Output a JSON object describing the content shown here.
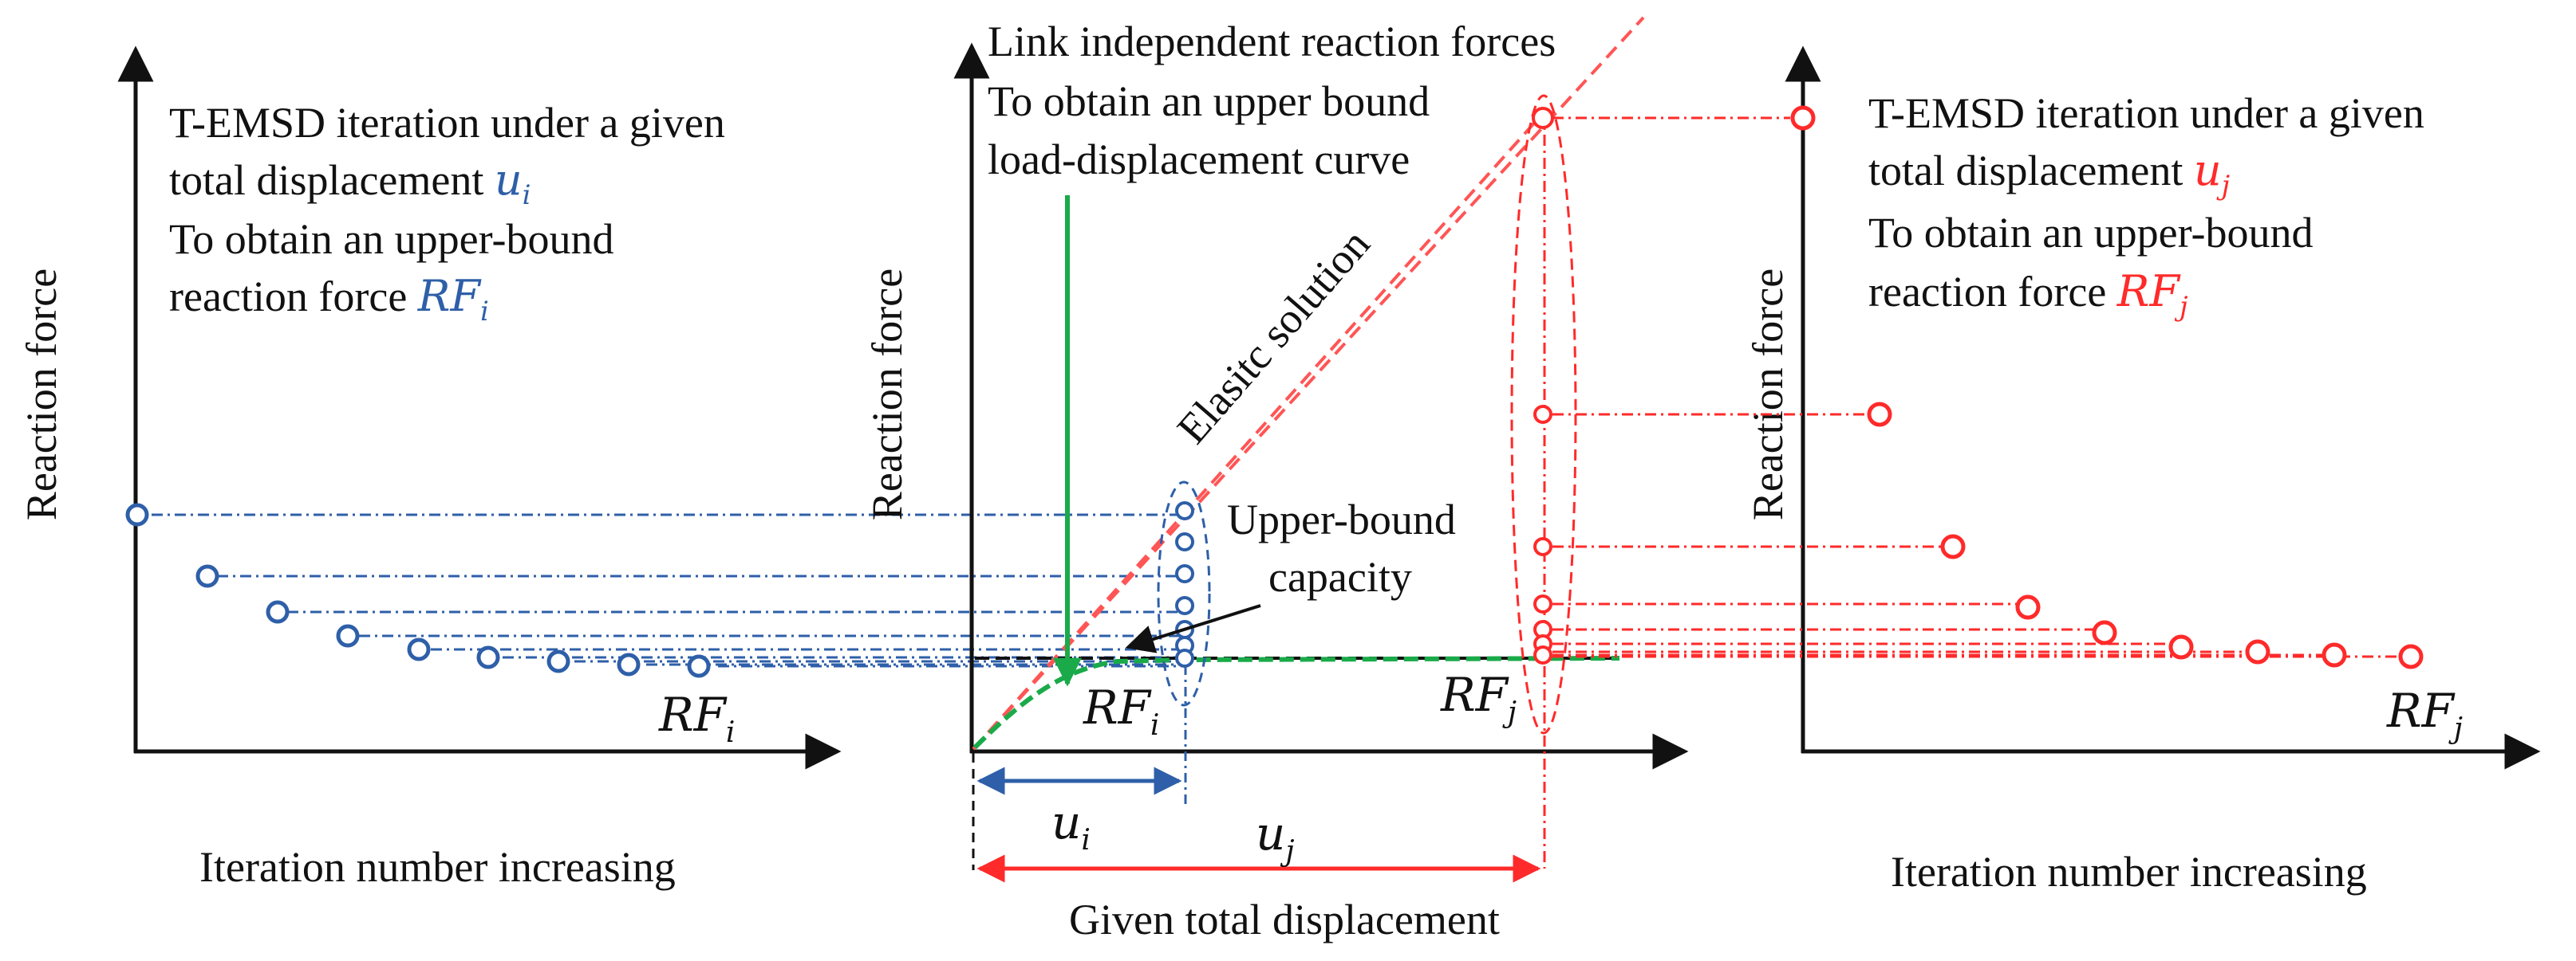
{
  "colors": {
    "blue": "#2e5fa8",
    "red": "#ff2a2a",
    "green": "#1aaa4a",
    "black": "#111111"
  },
  "left_panel": {
    "ylabel": "Reaction force",
    "xlabel": "Iteration number increasing",
    "line1": "T-EMSD iteration under a given",
    "line2_prefix": "total displacement ",
    "line2_var": "u",
    "line2_sub": "i",
    "line3": "To obtain an upper-bound",
    "line4_prefix": "reaction force ",
    "line4_var": "RF",
    "line4_sub": "i",
    "series_var": "RF",
    "series_sub": "i"
  },
  "middle_panel": {
    "ylabel": "Reaction force",
    "xlabel": "Given total displacement",
    "title1": "Link independent reaction forces",
    "title2": "To obtain an upper bound",
    "title3": "load-displacement curve",
    "elastic_label": "Elasitc solution",
    "capacity1": "Upper-bound",
    "capacity2": "capacity",
    "rfi_var": "RF",
    "rfi_sub": "i",
    "rfj_var": "RF",
    "rfj_sub": "j",
    "ui_var": "u",
    "ui_sub": "i",
    "uj_var": "u",
    "uj_sub": "j"
  },
  "right_panel": {
    "ylabel": "Reaction force",
    "xlabel": "Iteration number increasing",
    "line1": "T-EMSD iteration under a given",
    "line2_prefix": "total displacement ",
    "line2_var": "u",
    "line2_sub": "j",
    "line3": "To obtain an upper-bound",
    "line4_prefix": "reaction force ",
    "line4_var": "RF",
    "line4_sub": "j",
    "series_var": "RF",
    "series_sub": "j"
  }
}
